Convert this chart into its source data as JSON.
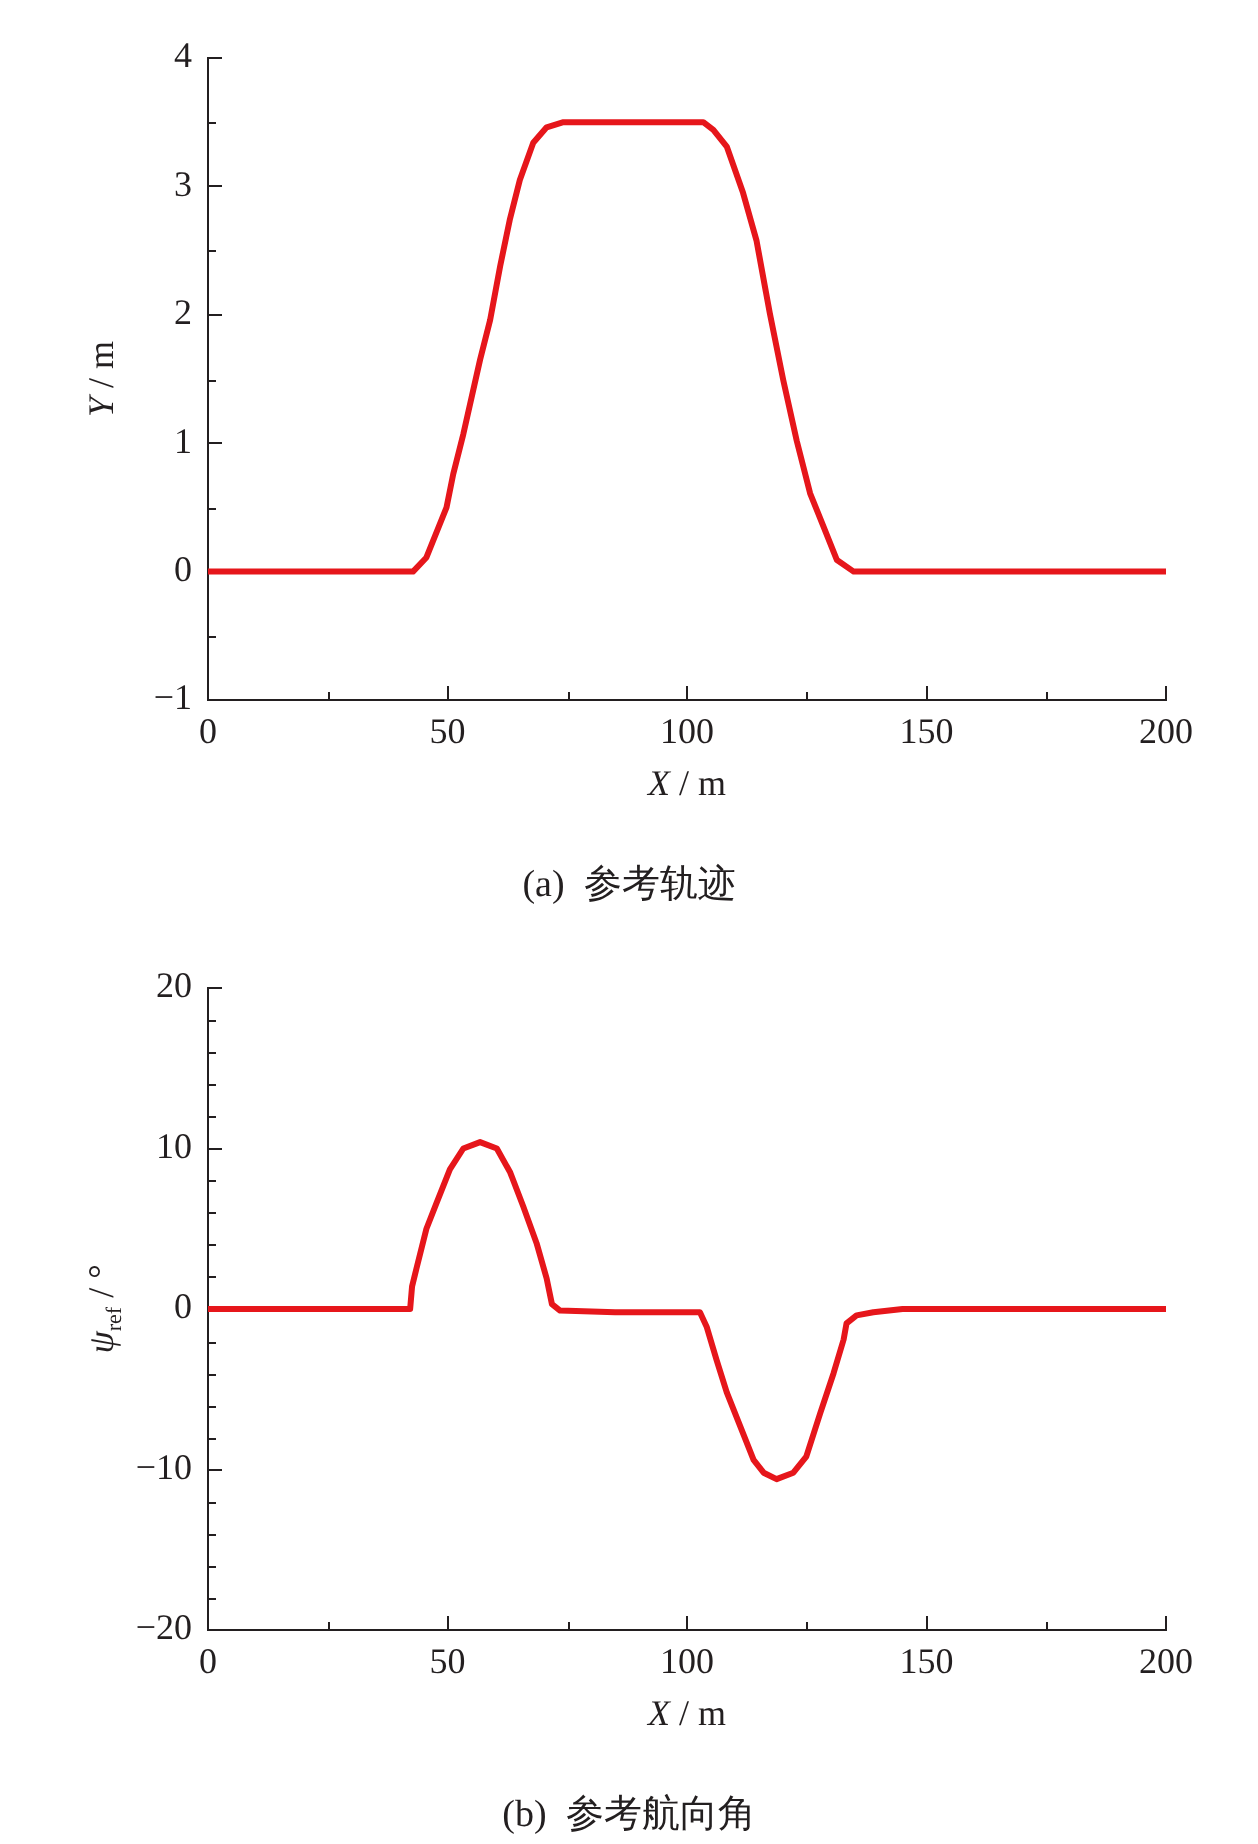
{
  "chart_data": [
    {
      "type": "line",
      "title": "(a)  参考轨迹",
      "xlabel": "X / m",
      "ylabel": "Y / m",
      "marker": "none",
      "line_style": "solid",
      "x": [
        0,
        42.8,
        45.6,
        49.8,
        51.2,
        53.3,
        56.8,
        58.9,
        61.0,
        63.0,
        65.1,
        67.9,
        70.7,
        74.2,
        103.4,
        105.5,
        108.3,
        111.7,
        114.5,
        117.3,
        120.1,
        122.9,
        125.7,
        128.5,
        131.3,
        134.8,
        150,
        170,
        200
      ],
      "series": [
        {
          "color": "#e6161b",
          "values": [
            0,
            0,
            0.11,
            0.5,
            0.76,
            1.07,
            1.65,
            1.96,
            2.38,
            2.74,
            3.05,
            3.34,
            3.46,
            3.5,
            3.5,
            3.44,
            3.31,
            2.95,
            2.58,
            2.01,
            1.49,
            1.02,
            0.61,
            0.35,
            0.09,
            0,
            0,
            0,
            0
          ]
        }
      ],
      "xlim": [
        0,
        200
      ],
      "xticks": [
        0,
        {
          "value": 25,
          "label": null
        },
        50,
        {
          "value": 75,
          "label": null
        },
        100,
        {
          "value": 125,
          "label": null
        },
        150,
        {
          "value": 175,
          "label": null
        },
        200
      ],
      "ylim": [
        -1,
        4
      ],
      "yticks": [
        {
          "value": -1,
          "label": "−1"
        },
        {
          "value": -0.5,
          "label": null
        },
        0,
        {
          "value": 0.5,
          "label": null
        },
        1,
        {
          "value": 1.5,
          "label": null
        },
        2,
        {
          "value": 2.5,
          "label": null
        },
        3,
        {
          "value": 3.5,
          "label": null
        },
        4
      ]
    },
    {
      "type": "line",
      "title": "(b)  参考航向角",
      "xlabel": "X / m",
      "ylabel": "ψ$_{ref}$ / °",
      "marker": "none",
      "line_style": "solid",
      "x": [
        0,
        42.2,
        42.6,
        43.5,
        45.6,
        47.7,
        50.5,
        53.3,
        56.8,
        60.3,
        63.1,
        65.8,
        68.6,
        70.7,
        71.8,
        73.5,
        85,
        102.7,
        104.1,
        106.2,
        108.3,
        111.1,
        113.9,
        116.0,
        118.7,
        122.2,
        124.9,
        127.8,
        130.6,
        132.7,
        133.3,
        135.4,
        138.9,
        145,
        200
      ],
      "series": [
        {
          "color": "#e6161b",
          "values": [
            0,
            0,
            1.4,
            2.5,
            5.0,
            6.6,
            8.7,
            10.0,
            10.4,
            10.0,
            8.5,
            6.4,
            4.1,
            1.9,
            0.3,
            -0.1,
            -0.2,
            -0.2,
            -1.1,
            -3.2,
            -5.2,
            -7.3,
            -9.4,
            -10.2,
            -10.6,
            -10.2,
            -9.2,
            -6.5,
            -4.0,
            -1.9,
            -0.9,
            -0.4,
            -0.2,
            0,
            0
          ]
        }
      ],
      "xlim": [
        0,
        200
      ],
      "xticks": [
        0,
        {
          "value": 25,
          "label": null
        },
        50,
        {
          "value": 75,
          "label": null
        },
        100,
        {
          "value": 125,
          "label": null
        },
        150,
        {
          "value": 175,
          "label": null
        },
        200
      ],
      "ylim": [
        -20,
        20
      ],
      "yticks": [
        {
          "value": -20,
          "label": "−20"
        },
        {
          "value": -18,
          "label": null
        },
        {
          "value": -16,
          "label": null
        },
        {
          "value": -14,
          "label": null
        },
        {
          "value": -12,
          "label": null
        },
        {
          "value": -10,
          "label": "−10"
        },
        {
          "value": -8,
          "label": null
        },
        {
          "value": -6,
          "label": null
        },
        {
          "value": -4,
          "label": null
        },
        {
          "value": -2,
          "label": null
        },
        0,
        {
          "value": 2,
          "label": null
        },
        {
          "value": 4,
          "label": null
        },
        {
          "value": 6,
          "label": null
        },
        {
          "value": 8,
          "label": null
        },
        10,
        {
          "value": 12,
          "label": null
        },
        {
          "value": 14,
          "label": null
        },
        {
          "value": 16,
          "label": null
        },
        {
          "value": 18,
          "label": null
        },
        20
      ]
    }
  ]
}
